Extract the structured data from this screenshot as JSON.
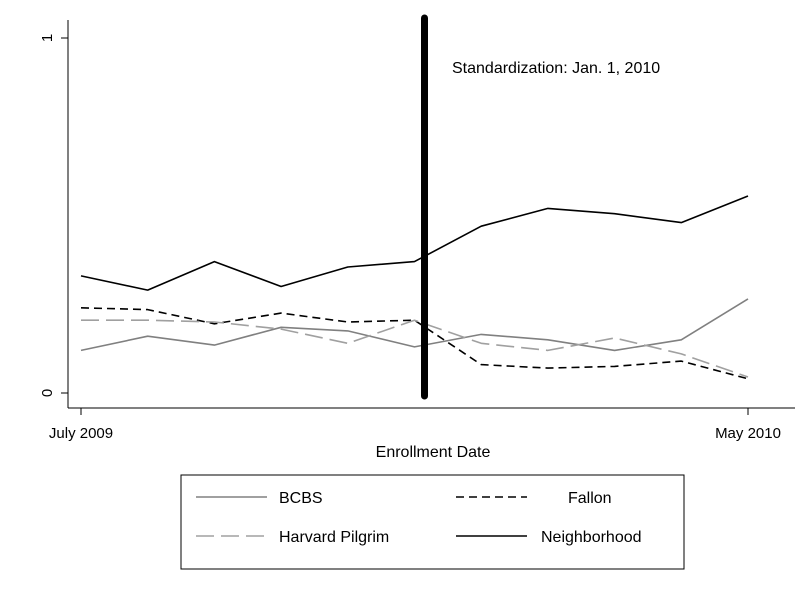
{
  "chart_data": {
    "type": "line",
    "xlabel": "Enrollment Date",
    "ylabel": "",
    "ylim": [
      0,
      1
    ],
    "y_ticks": [
      "0",
      "1"
    ],
    "x_tick_labels": [
      "July 2009",
      "May 2010"
    ],
    "x_points": 11,
    "grid": false,
    "legend_placement": "bottom",
    "annotation": {
      "text": "Standardization: Jan. 1, 2010",
      "x_index": 5.15
    },
    "series": [
      {
        "name": "BCBS",
        "color": "#808080",
        "dash": "solid",
        "values": [
          0.12,
          0.16,
          0.135,
          0.185,
          0.175,
          0.13,
          0.165,
          0.15,
          0.12,
          0.15,
          0.265
        ]
      },
      {
        "name": "Fallon",
        "color": "#000000",
        "dash": "short-dash",
        "values": [
          0.24,
          0.235,
          0.195,
          0.225,
          0.2,
          0.205,
          0.08,
          0.07,
          0.075,
          0.09,
          0.04
        ]
      },
      {
        "name": "Harvard Pilgrim",
        "color": "#a0a0a0",
        "dash": "long-dash",
        "values": [
          0.205,
          0.205,
          0.2,
          0.18,
          0.14,
          0.205,
          0.14,
          0.12,
          0.155,
          0.11,
          0.045
        ]
      },
      {
        "name": "Neighborhood",
        "color": "#000000",
        "dash": "solid",
        "values": [
          0.33,
          0.29,
          0.37,
          0.3,
          0.355,
          0.37,
          0.47,
          0.52,
          0.505,
          0.48,
          0.555
        ]
      }
    ]
  }
}
